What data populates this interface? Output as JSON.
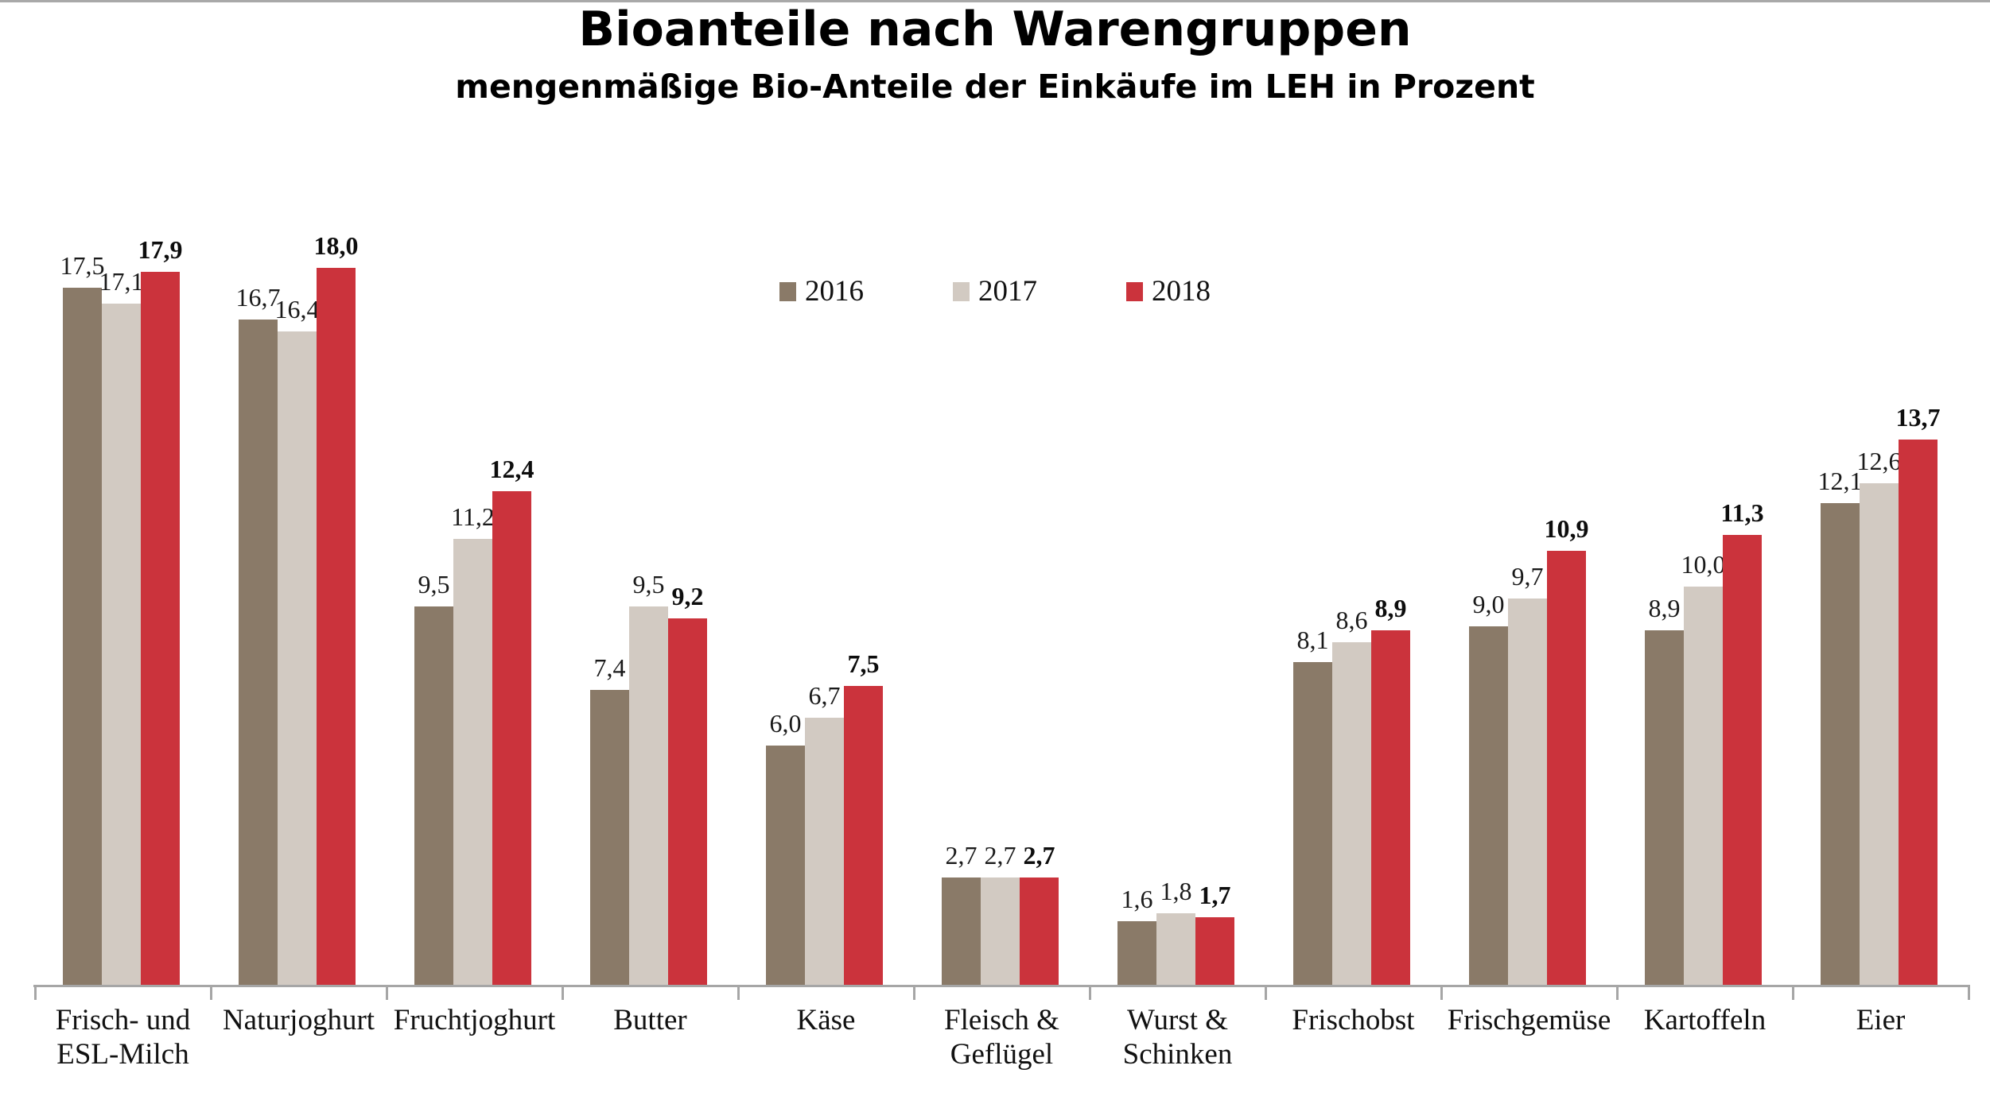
{
  "title": "Bioanteile nach Warengruppen",
  "subtitle": "mengenmäßige Bio-Anteile der Einkäufe im LEH in Prozent",
  "legend": {
    "items": [
      "2016",
      "2017",
      "2018"
    ]
  },
  "colors": {
    "series_2016": "#8a7a68",
    "series_2017": "#d2cac2",
    "series_2018": "#cb333c",
    "axis": "#a6a6a6",
    "text": "#111111"
  },
  "chart_data": {
    "type": "bar",
    "title": "Bioanteile nach Warengruppen",
    "subtitle": "mengenmäßige Bio-Anteile der Einkäufe im LEH in Prozent",
    "xlabel": "",
    "ylabel": "",
    "ylim": [
      0,
      18.5
    ],
    "grid": false,
    "legend_position": "top-center",
    "value_label_decimal_separator": ",",
    "categories": [
      "Frisch- und ESL-Milch",
      "Naturjoghurt",
      "Fruchtjoghurt",
      "Butter",
      "Käse",
      "Fleisch & Geflügel",
      "Wurst & Schinken",
      "Frischobst",
      "Frischgemüse",
      "Kartoffeln",
      "Eier"
    ],
    "categories_display": [
      [
        "Frisch- und",
        "ESL-Milch"
      ],
      [
        "Naturjoghurt"
      ],
      [
        "Fruchtjoghurt"
      ],
      [
        "Butter"
      ],
      [
        "Käse"
      ],
      [
        "Fleisch &",
        "Geflügel"
      ],
      [
        "Wurst &",
        "Schinken"
      ],
      [
        "Frischobst"
      ],
      [
        "Frischgemüse"
      ],
      [
        "Kartoffeln"
      ],
      [
        "Eier"
      ]
    ],
    "series": [
      {
        "name": "2016",
        "color": "#8a7a68",
        "bold_labels": false,
        "values": [
          17.5,
          16.7,
          9.5,
          7.4,
          6.0,
          2.7,
          1.6,
          8.1,
          9.0,
          8.9,
          12.1
        ],
        "labels": [
          "17,5",
          "16,7",
          "9,5",
          "7,4",
          "6,0",
          "2,7",
          "1,6",
          "8,1",
          "9,0",
          "8,9",
          "12,1"
        ]
      },
      {
        "name": "2017",
        "color": "#d2cac2",
        "bold_labels": false,
        "values": [
          17.1,
          16.4,
          11.2,
          9.5,
          6.7,
          2.7,
          1.8,
          8.6,
          9.7,
          10.0,
          12.6
        ],
        "labels": [
          "17,1",
          "16,4",
          "11,2",
          "9,5",
          "6,7",
          "2,7",
          "1,8",
          "8,6",
          "9,7",
          "10,0",
          "12,6"
        ]
      },
      {
        "name": "2018",
        "color": "#cb333c",
        "bold_labels": true,
        "values": [
          17.9,
          18.0,
          12.4,
          9.2,
          7.5,
          2.7,
          1.7,
          8.9,
          10.9,
          11.3,
          13.7
        ],
        "labels": [
          "17,9",
          "18,0",
          "12,4",
          "9,2",
          "7,5",
          "2,7",
          "1,7",
          "8,9",
          "10,9",
          "11,3",
          "13,7"
        ]
      }
    ]
  }
}
